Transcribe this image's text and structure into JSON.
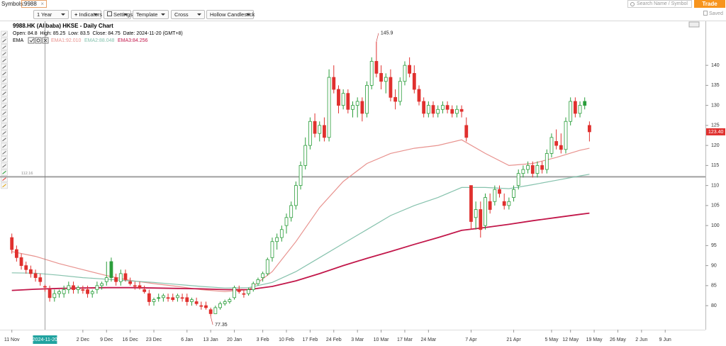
{
  "toolbar": {
    "symbols_label": "Symbols:",
    "symbol": "9988",
    "period": "1 Year",
    "indicators": "Indicators",
    "settings": "Settings",
    "template": "Template",
    "crosshair": "Cross",
    "chart_style": "Hollow Candlestick",
    "search_placeholder": "Search Name / Symbol",
    "trade": "Trade",
    "saved": "Saved"
  },
  "chart_data": {
    "type": "candlestick",
    "title": "9988.HK (Alibaba) HKSE - Daily Chart",
    "info": "Open: 84.8  High: 85.25  Low: 83.5  Close: 84.75  Date: 2024-11-20 (GMT+8)",
    "indicator_label": "EMA",
    "up_color": "#2b9e3b",
    "down_color": "#e0302e",
    "open": [
      97,
      94,
      92,
      90,
      89,
      88,
      87,
      84.8,
      84,
      82,
      83,
      83,
      84,
      85,
      84,
      84,
      84,
      83,
      84,
      85,
      86,
      91,
      87,
      86,
      88,
      86,
      85,
      85,
      84,
      83,
      81,
      82,
      82,
      82,
      82,
      82,
      82,
      82,
      81,
      81,
      80,
      80,
      79,
      78,
      79.5,
      80.5,
      81,
      82,
      84,
      83,
      83,
      84,
      85.5,
      87,
      88,
      92,
      96,
      97,
      100,
      102,
      105,
      110,
      115,
      120,
      126,
      123,
      125,
      122,
      137,
      134,
      130,
      133,
      129,
      130,
      131,
      128,
      135,
      141,
      138,
      136,
      137,
      132,
      131,
      136,
      140,
      138,
      134,
      131,
      128,
      130,
      128,
      129,
      130,
      129,
      128,
      129,
      125,
      110,
      102,
      104,
      100,
      106,
      106,
      109,
      106,
      105,
      107,
      110,
      113,
      114,
      115,
      113,
      115,
      114,
      118,
      121,
      120,
      119,
      126,
      131,
      128,
      131,
      125
    ],
    "high": [
      98,
      95,
      93,
      91,
      90,
      89,
      88,
      85.25,
      85,
      84,
      84,
      85,
      86,
      86,
      85,
      85,
      85,
      84,
      86,
      86,
      91,
      92,
      88,
      89,
      89,
      87,
      86,
      86,
      85,
      84,
      82,
      83,
      83,
      83,
      83,
      83,
      83,
      83,
      82,
      82,
      81,
      81,
      79.5,
      80,
      81,
      81.5,
      82,
      85,
      85,
      84,
      84.5,
      86,
      87,
      88.5,
      92,
      97,
      98,
      100,
      103,
      106,
      111,
      116,
      122,
      127,
      128,
      126,
      127,
      139,
      140,
      135,
      134,
      134,
      131,
      132,
      132,
      136,
      142,
      145.9,
      140,
      138,
      139,
      134,
      137,
      141,
      142,
      140,
      135,
      132,
      131,
      131,
      130,
      131,
      131,
      130,
      130,
      130,
      127,
      110,
      106,
      106,
      108,
      108,
      110,
      110,
      108,
      107,
      110,
      114,
      115,
      116,
      116,
      116,
      116,
      119,
      123,
      124,
      123,
      127,
      132,
      132,
      131,
      132,
      126
    ],
    "low": [
      93,
      91,
      89,
      88,
      87,
      86,
      85,
      83.5,
      81,
      81,
      82,
      82,
      83,
      83,
      83,
      83,
      82,
      82,
      83,
      84,
      85,
      86,
      85,
      85,
      86,
      85,
      84,
      84,
      83,
      80,
      80,
      81,
      81,
      81,
      81,
      81,
      81,
      80,
      80,
      80,
      79,
      79,
      77.35,
      78,
      79,
      80,
      80.5,
      81.5,
      83,
      82,
      82.5,
      83.5,
      85,
      86,
      87.5,
      91,
      94,
      96,
      98,
      101,
      104,
      109,
      114,
      119,
      122,
      121,
      121,
      121,
      133,
      128,
      129,
      128,
      127,
      127,
      126,
      127,
      134,
      137,
      134,
      133,
      131,
      129,
      130,
      135,
      137,
      133,
      130,
      127,
      127,
      127,
      127,
      128,
      128,
      127,
      127,
      127,
      121,
      99,
      99,
      97,
      99,
      103,
      105,
      107,
      104,
      104,
      106,
      109,
      112,
      113,
      112,
      112,
      113,
      113,
      117,
      119,
      118,
      118,
      125,
      127,
      127,
      129,
      121
    ],
    "close": [
      94,
      92,
      90,
      89,
      88,
      87,
      86,
      84.75,
      82,
      83,
      83.5,
      84,
      85,
      84,
      84.5,
      84,
      83,
      83.5,
      85,
      85.5,
      87,
      87,
      86,
      88,
      86.5,
      85.5,
      85,
      84.5,
      83.5,
      81,
      81.5,
      82,
      82.5,
      82,
      81.5,
      82.5,
      82,
      81,
      81.5,
      80.5,
      80,
      79.5,
      78,
      79.5,
      80.5,
      81,
      81.5,
      84.5,
      83.5,
      83,
      84,
      85.5,
      86.5,
      88,
      91.5,
      96,
      97,
      99,
      102,
      105,
      110,
      115,
      120,
      126,
      123,
      125,
      122,
      137,
      134,
      130,
      133,
      129,
      130,
      131,
      128,
      135,
      141,
      138,
      136,
      137,
      132,
      131,
      136,
      140,
      138,
      134,
      131,
      128,
      130,
      128,
      129,
      130,
      129,
      128,
      129,
      128.5,
      122,
      101,
      104,
      99,
      107,
      104,
      109,
      108,
      105,
      106,
      109,
      113,
      114,
      115,
      113,
      115,
      114,
      118,
      122,
      120,
      119,
      126,
      131,
      128,
      130,
      130,
      123.4
    ],
    "xlim": [
      -2.5,
      146.5
    ],
    "xticks": [
      {
        "value": 0,
        "label": "11 Nov"
      },
      {
        "value": 15,
        "label": "2 Dec"
      },
      {
        "value": 20,
        "label": "9 Dec"
      },
      {
        "value": 25,
        "label": "16 Dec"
      },
      {
        "value": 30,
        "label": "23 Dec"
      },
      {
        "value": 37,
        "label": "6 Jan"
      },
      {
        "value": 42,
        "label": "13 Jan"
      },
      {
        "value": 47,
        "label": "20 Jan"
      },
      {
        "value": 53,
        "label": "3 Feb"
      },
      {
        "value": 58,
        "label": "10 Feb"
      },
      {
        "value": 63,
        "label": "17 Feb"
      },
      {
        "value": 68,
        "label": "24 Feb"
      },
      {
        "value": 73,
        "label": "3 Mar"
      },
      {
        "value": 78,
        "label": "10 Mar"
      },
      {
        "value": 83,
        "label": "17 Mar"
      },
      {
        "value": 88,
        "label": "24 Mar"
      },
      {
        "value": 97,
        "label": "7 Apr"
      },
      {
        "value": 106,
        "label": "21 Apr"
      },
      {
        "value": 114,
        "label": "5 May"
      },
      {
        "value": 118,
        "label": "12 May"
      },
      {
        "value": 123,
        "label": "19 May"
      },
      {
        "value": 128,
        "label": "26 May"
      },
      {
        "value": 133,
        "label": "2 Jun"
      },
      {
        "value": 138,
        "label": "9 Jun"
      }
    ],
    "ylim": [
      74,
      151
    ],
    "yticks": [
      80,
      85,
      90,
      95,
      100,
      105,
      110,
      115,
      120,
      125,
      130,
      135,
      140
    ],
    "ema_x": [
      0,
      5,
      10,
      15,
      20,
      25,
      30,
      35,
      40,
      45,
      50,
      55,
      60,
      65,
      70,
      75,
      80,
      85,
      90,
      95,
      100,
      105,
      110,
      115,
      120,
      122
    ],
    "overlays": [
      {
        "name": "EMA1:92.010",
        "color": "#e8928e",
        "width": 1.2,
        "values": [
          93.5,
          92.3,
          90.5,
          89,
          87.5,
          86.3,
          85.5,
          84.8,
          84,
          83.5,
          84,
          88.5,
          96,
          104.5,
          111,
          115.5,
          118,
          119.3,
          120,
          121.4,
          118,
          115,
          115.5,
          117,
          118.8,
          119.3
        ]
      },
      {
        "name": "EMA2:88.048",
        "color": "#86c2ad",
        "width": 1.2,
        "values": [
          88.2,
          88.1,
          87.6,
          87,
          86.6,
          86.2,
          85.8,
          85.3,
          84.8,
          84.4,
          84.5,
          85.8,
          88.5,
          92,
          95.5,
          99,
          102.5,
          105,
          107,
          109.5,
          109.5,
          109.2,
          110.2,
          111.3,
          112.4,
          112.8
        ]
      },
      {
        "name": "EMA3:84.256",
        "color": "#c2174a",
        "width": 1.8,
        "values": [
          83.8,
          84.1,
          84.3,
          84.4,
          84.5,
          84.5,
          84.4,
          84.3,
          84.2,
          84,
          84,
          84.8,
          86.2,
          88,
          90,
          91.8,
          93.5,
          95.3,
          97,
          98.8,
          99.5,
          100.3,
          101.2,
          102,
          102.8,
          103.1
        ]
      }
    ],
    "horizontal_line": {
      "value": 112.16
    },
    "annotations": [
      {
        "x": 77,
        "value": 145.9
      },
      {
        "x": 42,
        "value": 77.35
      }
    ],
    "last_price": {
      "value": 123.4,
      "label": "123.40"
    },
    "crosshair": {
      "x": 7,
      "label": "2024-11-20"
    }
  }
}
